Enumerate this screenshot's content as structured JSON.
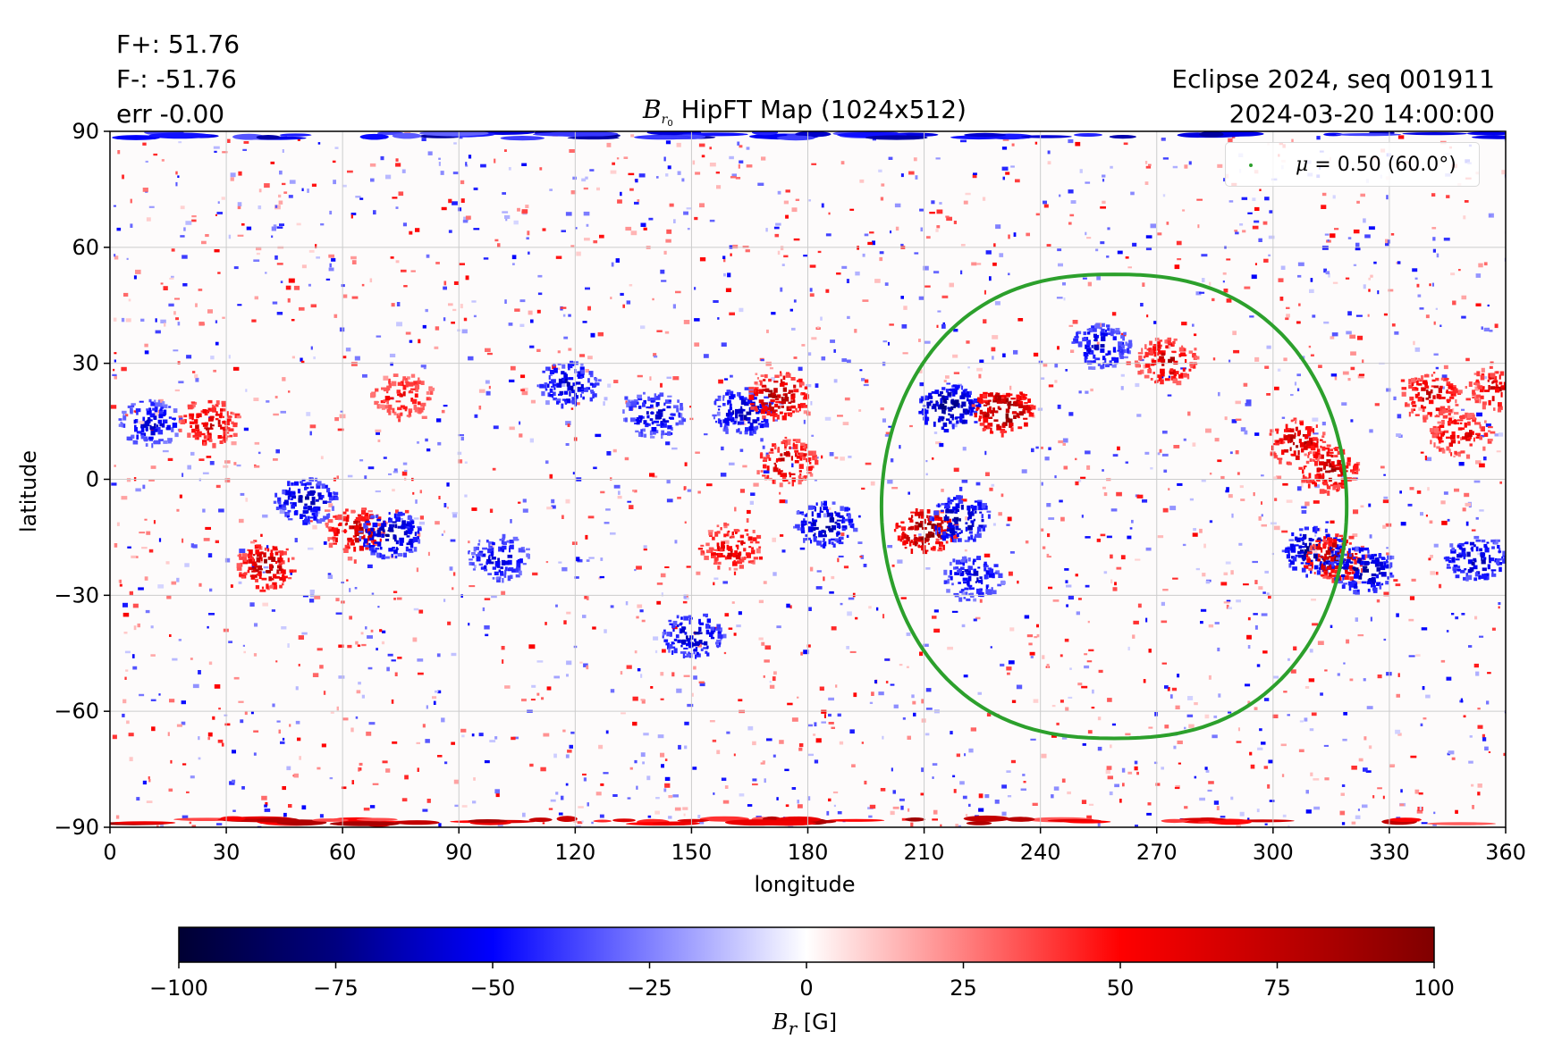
{
  "annotations": {
    "flux_pos": "F+: 51.76",
    "flux_neg": "F-: -51.76",
    "error": "err -0.00",
    "event": "Eclipse 2024, seq 001911",
    "datetime": "2024-03-20 14:00:00"
  },
  "title": {
    "symbol": "B",
    "sub1": "r",
    "sub2": "0",
    "rest": " HipFT Map (1024x512)"
  },
  "colors": {
    "positive": "#cc0000",
    "negative": "#0000aa",
    "contour": "#2ca02c",
    "grid": "#cccccc"
  },
  "chart_data": {
    "type": "heatmap",
    "xlabel": "longitude",
    "ylabel": "latitude",
    "xlim": [
      0,
      360
    ],
    "ylim": [
      -90,
      90
    ],
    "xticks": [
      "0",
      "30",
      "60",
      "90",
      "120",
      "150",
      "180",
      "210",
      "240",
      "270",
      "300",
      "330",
      "360"
    ],
    "yticks": [
      "90",
      "60",
      "30",
      "0",
      "−30",
      "−60",
      "−90"
    ],
    "grid": true,
    "colorbar": {
      "cmap": "seismic",
      "range": [
        -100,
        100
      ],
      "ticks": [
        "−100",
        "−75",
        "−50",
        "−25",
        "0",
        "25",
        "50",
        "75",
        "100"
      ],
      "label_symbol": "B",
      "label_sub": "r",
      "label_unit": " [G]"
    },
    "legend": {
      "placement": "top-right",
      "symbol": "μ",
      "text": " = 0.50 (60.0°)",
      "color": "#2ca02c"
    },
    "contour": {
      "name": "μ = 0.50 (60.0°)",
      "center_lon": 259,
      "center_lat": -7,
      "lon_halfwidth": 60,
      "lat_top": 53,
      "lat_bottom": -67
    },
    "active_regions": [
      {
        "lon": 10,
        "lat": 15,
        "polarity": "negative",
        "strength": 70
      },
      {
        "lon": 25,
        "lat": 15,
        "polarity": "positive",
        "strength": 75
      },
      {
        "lon": 40,
        "lat": -22,
        "polarity": "positive",
        "strength": 85
      },
      {
        "lon": 50,
        "lat": -5,
        "polarity": "negative",
        "strength": 80
      },
      {
        "lon": 63,
        "lat": -13,
        "polarity": "positive",
        "strength": 80
      },
      {
        "lon": 72,
        "lat": -14,
        "polarity": "negative",
        "strength": 90
      },
      {
        "lon": 75,
        "lat": 22,
        "polarity": "positive",
        "strength": 60
      },
      {
        "lon": 100,
        "lat": -20,
        "polarity": "negative",
        "strength": 70
      },
      {
        "lon": 118,
        "lat": 25,
        "polarity": "negative",
        "strength": 75
      },
      {
        "lon": 140,
        "lat": 17,
        "polarity": "negative",
        "strength": 70
      },
      {
        "lon": 150,
        "lat": -40,
        "polarity": "negative",
        "strength": 80
      },
      {
        "lon": 160,
        "lat": -17,
        "polarity": "positive",
        "strength": 70
      },
      {
        "lon": 163,
        "lat": 18,
        "polarity": "negative",
        "strength": 80
      },
      {
        "lon": 172,
        "lat": 22,
        "polarity": "positive",
        "strength": 90
      },
      {
        "lon": 174,
        "lat": 5,
        "polarity": "positive",
        "strength": 75
      },
      {
        "lon": 184,
        "lat": -11,
        "polarity": "negative",
        "strength": 85
      },
      {
        "lon": 216,
        "lat": 19,
        "polarity": "negative",
        "strength": 100
      },
      {
        "lon": 230,
        "lat": 18,
        "polarity": "positive",
        "strength": 100
      },
      {
        "lon": 210,
        "lat": -13,
        "polarity": "positive",
        "strength": 100
      },
      {
        "lon": 219,
        "lat": -10,
        "polarity": "negative",
        "strength": 90
      },
      {
        "lon": 222,
        "lat": -25,
        "polarity": "negative",
        "strength": 70
      },
      {
        "lon": 255,
        "lat": 35,
        "polarity": "negative",
        "strength": 70
      },
      {
        "lon": 272,
        "lat": 31,
        "polarity": "positive",
        "strength": 75
      },
      {
        "lon": 306,
        "lat": 10,
        "polarity": "positive",
        "strength": 80
      },
      {
        "lon": 314,
        "lat": 3,
        "polarity": "positive",
        "strength": 80
      },
      {
        "lon": 310,
        "lat": -18,
        "polarity": "negative",
        "strength": 95
      },
      {
        "lon": 316,
        "lat": -20,
        "polarity": "positive",
        "strength": 90
      },
      {
        "lon": 323,
        "lat": -23,
        "polarity": "negative",
        "strength": 90
      },
      {
        "lon": 340,
        "lat": 22,
        "polarity": "positive",
        "strength": 75
      },
      {
        "lon": 348,
        "lat": 12,
        "polarity": "positive",
        "strength": 70
      },
      {
        "lon": 352,
        "lat": -20,
        "polarity": "negative",
        "strength": 80
      },
      {
        "lon": 358,
        "lat": 24,
        "polarity": "positive",
        "strength": 70
      }
    ]
  }
}
